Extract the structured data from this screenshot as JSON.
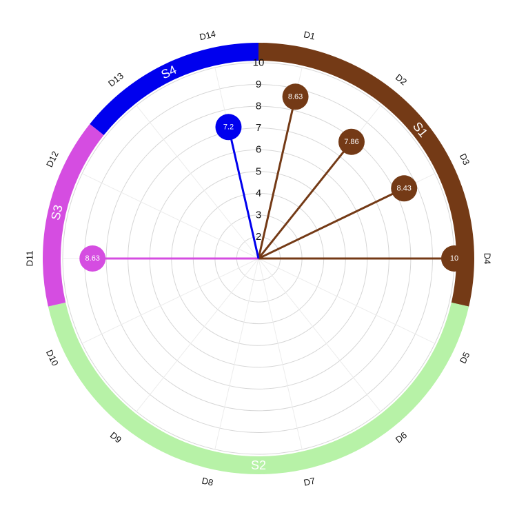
{
  "chart_data": {
    "type": "radial-lollipop",
    "title": "",
    "rlim": [
      0,
      10
    ],
    "r_ticks": [
      "2",
      "3",
      "4",
      "5",
      "6",
      "7",
      "8",
      "9",
      "10"
    ],
    "categories": [
      "D1",
      "D2",
      "D3",
      "D4",
      "D5",
      "D6",
      "D7",
      "D8",
      "D9",
      "D10",
      "D11",
      "D12",
      "D13",
      "D14"
    ],
    "groups": [
      {
        "label": "S1",
        "color": "#743a16",
        "categories": [
          "D1",
          "D2",
          "D3",
          "D4"
        ]
      },
      {
        "label": "S2",
        "color": "#b7f2a7",
        "categories": [
          "D5",
          "D6",
          "D7",
          "D8",
          "D9",
          "D10"
        ]
      },
      {
        "label": "S3",
        "color": "#d54de1",
        "categories": [
          "D11",
          "D12"
        ]
      },
      {
        "label": "S4",
        "color": "#0000ee",
        "categories": [
          "D13",
          "D14"
        ]
      }
    ],
    "points": [
      {
        "category": "D1",
        "value": 8.63,
        "label": "8.63",
        "color": "#743a16"
      },
      {
        "category": "D2",
        "value": 7.86,
        "label": "7.86",
        "color": "#743a16"
      },
      {
        "category": "D3",
        "value": 8.43,
        "label": "8.43",
        "color": "#743a16"
      },
      {
        "category": "D4",
        "value": 10,
        "label": "10",
        "color": "#743a16"
      },
      {
        "category": "D11",
        "value": 8.63,
        "label": "8.63",
        "color": "#d54de1"
      },
      {
        "category": "D14",
        "value": 7.2,
        "label": "7.2",
        "color": "#0000ee"
      }
    ],
    "grid": true
  }
}
